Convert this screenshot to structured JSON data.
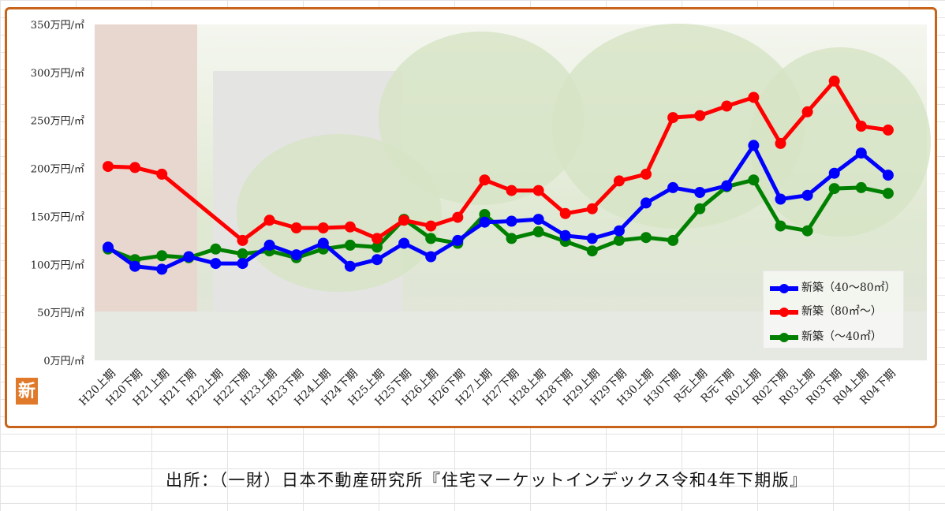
{
  "colors": {
    "frame": "#c8641a",
    "blue": "#0000ff",
    "red": "#ff0000",
    "green": "#008000",
    "logo": "#e07a2a"
  },
  "logo_text": "新",
  "source_text": "出所：（一財）日本不動産研究所『住宅マーケットインデックス令和4年下期版』",
  "chart_data": {
    "type": "line",
    "title": "",
    "xlabel": "",
    "ylabel": "",
    "ylim": [
      0,
      350
    ],
    "y_ticks": [
      0,
      50,
      100,
      150,
      200,
      250,
      300,
      350
    ],
    "y_tick_labels": [
      "0万円/㎡",
      "50万円/㎡",
      "100万円/㎡",
      "150万円/㎡",
      "200万円/㎡",
      "250万円/㎡",
      "300万円/㎡",
      "350万円/㎡"
    ],
    "grid": false,
    "legend_position": "bottom-right",
    "categories": [
      "H20上期",
      "H20下期",
      "H21上期",
      "H21下期",
      "H22上期",
      "H22下期",
      "H23上期",
      "H23下期",
      "H24上期",
      "H24下期",
      "H25上期",
      "H25下期",
      "H26上期",
      "H26下期",
      "H27上期",
      "H27下期",
      "H28上期",
      "H28下期",
      "H29上期",
      "H29下期",
      "H30上期",
      "H30下期",
      "R元上期",
      "R元下期",
      "R02上期",
      "R02下期",
      "R03上期",
      "R03下期",
      "R04上期",
      "R04下期"
    ],
    "series": [
      {
        "name": "新築（40～80㎡）",
        "color": "#0000ff",
        "values": [
          118,
          98,
          95,
          108,
          101,
          101,
          120,
          110,
          122,
          98,
          105,
          122,
          108,
          125,
          144,
          145,
          147,
          130,
          127,
          135,
          164,
          180,
          175,
          182,
          224,
          168,
          172,
          195,
          216,
          193
        ]
      },
      {
        "name": "新築（80㎡～）",
        "color": "#ff0000",
        "values": [
          202,
          201,
          194,
          null,
          null,
          125,
          146,
          138,
          138,
          139,
          127,
          146,
          140,
          149,
          188,
          177,
          177,
          153,
          158,
          187,
          194,
          253,
          255,
          265,
          274,
          226,
          259,
          291,
          244,
          240
        ]
      },
      {
        "name": "新築（～40㎡）",
        "color": "#008000",
        "values": [
          116,
          105,
          109,
          107,
          116,
          111,
          114,
          107,
          116,
          120,
          118,
          147,
          127,
          122,
          152,
          127,
          134,
          124,
          114,
          125,
          128,
          125,
          158,
          181,
          188,
          140,
          135,
          179,
          180,
          174
        ]
      }
    ]
  }
}
